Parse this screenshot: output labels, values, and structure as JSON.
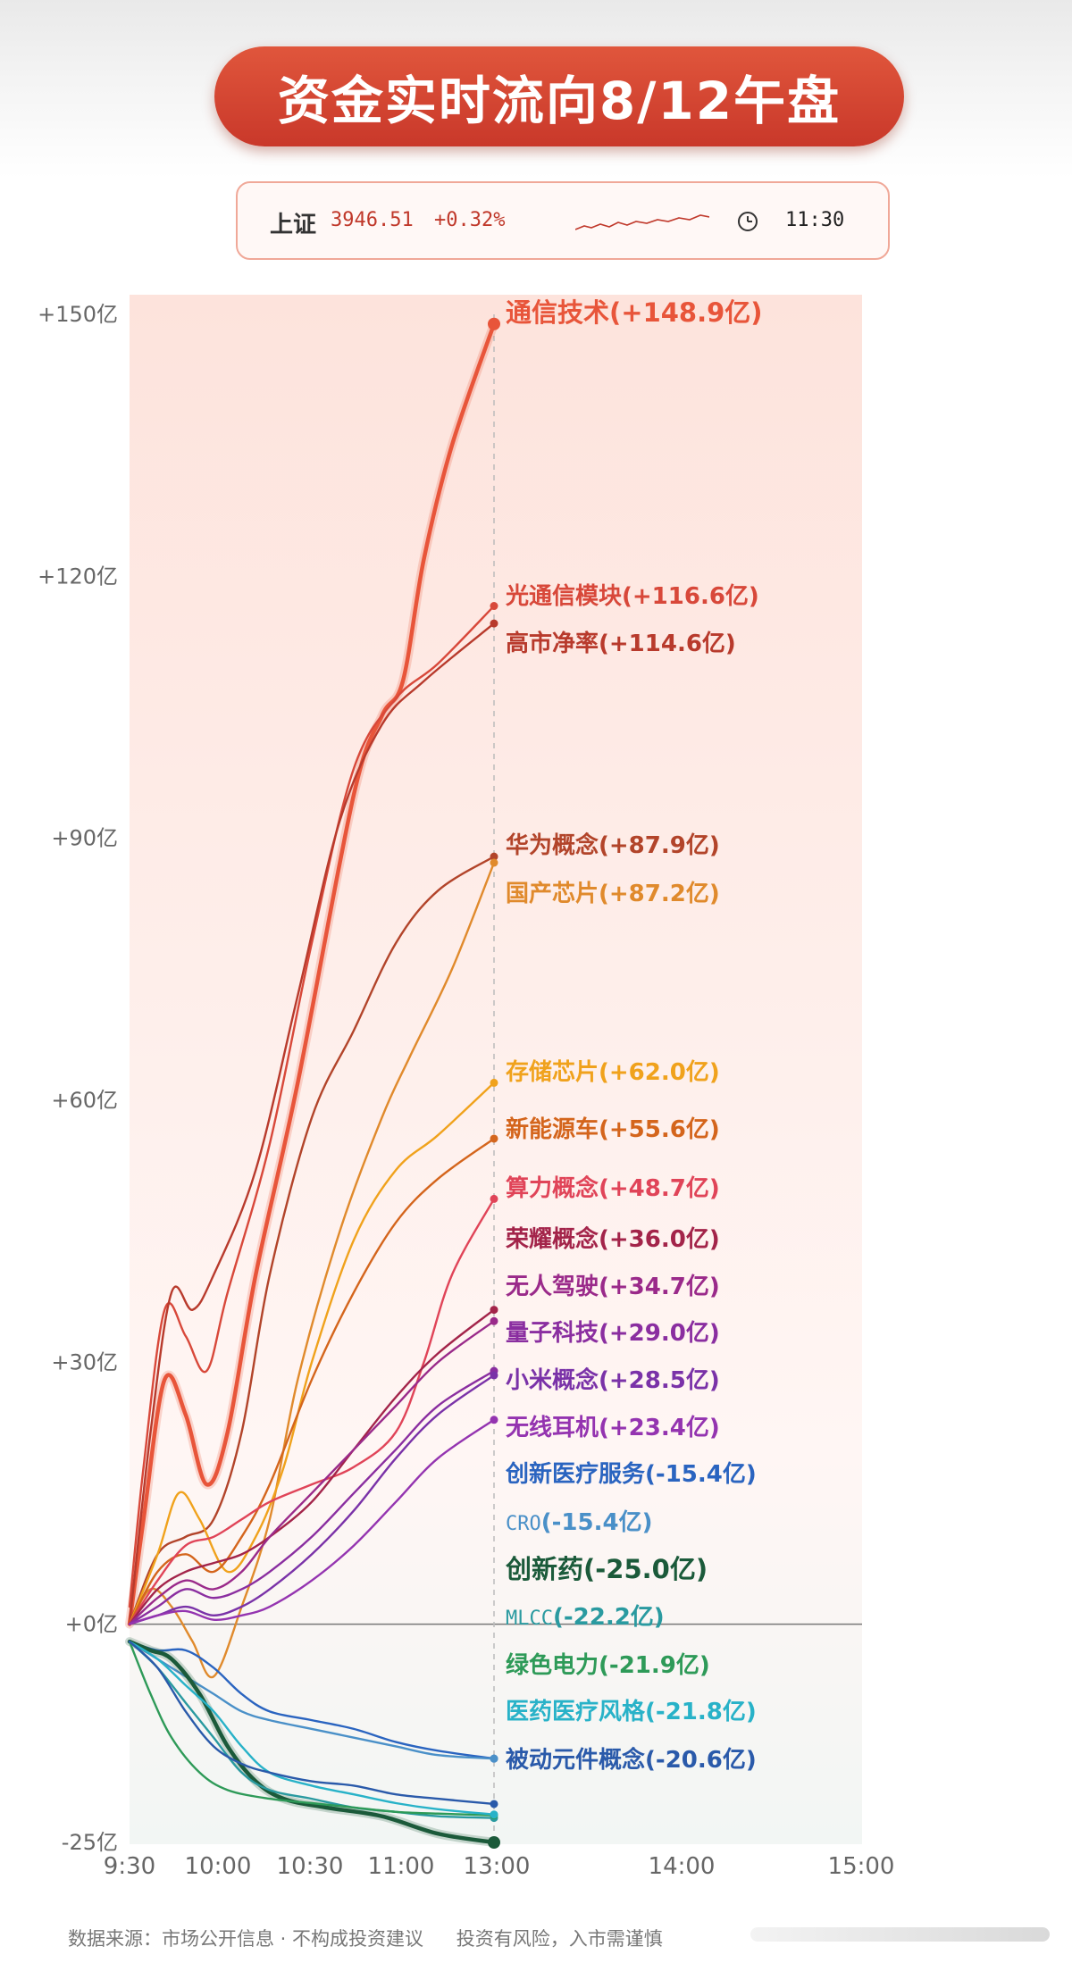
{
  "header": {
    "title": "资金实时流向8/12午盘"
  },
  "ticker": {
    "index_name": "上证",
    "index_value": "3946.51",
    "index_change": "+0.32%",
    "time": "11:30"
  },
  "footer": {
    "source": "数据来源：市场公开信息 · 不构成投资建议",
    "risk": "投资有风险，入市需谨慎"
  },
  "chart_data": {
    "type": "line",
    "x_ticks": [
      "9:30",
      "10:00",
      "10:30",
      "11:00",
      "13:00",
      "14:00",
      "15:00"
    ],
    "y_ticks": [
      "+150亿",
      "+120亿",
      "+90亿",
      "+60亿",
      "+30亿",
      "+0亿",
      "-25亿"
    ],
    "ylim": [
      -25,
      150
    ],
    "grid": false,
    "legend": "labels at line ends",
    "series": [
      {
        "name": "通信技术",
        "label": "(+148.9亿)",
        "value": 148.9,
        "color": "#e8553a",
        "bold": true,
        "points": [
          [
            0,
            0
          ],
          [
            0.1,
            12
          ],
          [
            0.25,
            28
          ],
          [
            0.4,
            24
          ],
          [
            0.55,
            16
          ],
          [
            0.7,
            22
          ],
          [
            0.9,
            40
          ],
          [
            1.2,
            62
          ],
          [
            1.6,
            95
          ],
          [
            1.8,
            104
          ],
          [
            1.95,
            108
          ],
          [
            2.1,
            122
          ],
          [
            2.3,
            135
          ],
          [
            2.6,
            148.9
          ]
        ]
      },
      {
        "name": "光通信模块",
        "label": "(+116.6亿)",
        "value": 116.6,
        "color": "#d8483a",
        "points": [
          [
            0,
            2
          ],
          [
            0.1,
            18
          ],
          [
            0.25,
            36
          ],
          [
            0.4,
            33
          ],
          [
            0.55,
            29
          ],
          [
            0.7,
            38
          ],
          [
            1,
            55
          ],
          [
            1.3,
            78
          ],
          [
            1.6,
            98
          ],
          [
            1.9,
            106
          ],
          [
            2.2,
            110
          ],
          [
            2.6,
            116.6
          ]
        ]
      },
      {
        "name": "高市净率",
        "label": "(+114.6亿)",
        "value": 114.6,
        "color": "#b83a2c",
        "points": [
          [
            0,
            0
          ],
          [
            0.15,
            22
          ],
          [
            0.3,
            38
          ],
          [
            0.45,
            36
          ],
          [
            0.6,
            40
          ],
          [
            0.9,
            52
          ],
          [
            1.2,
            72
          ],
          [
            1.5,
            92
          ],
          [
            1.8,
            103
          ],
          [
            2.1,
            108
          ],
          [
            2.6,
            114.6
          ]
        ]
      },
      {
        "name": "华为概念",
        "label": "(+87.9亿)",
        "value": 87.9,
        "color": "#b2442a",
        "points": [
          [
            0,
            0
          ],
          [
            0.2,
            8
          ],
          [
            0.4,
            10
          ],
          [
            0.6,
            12
          ],
          [
            0.8,
            22
          ],
          [
            1.0,
            40
          ],
          [
            1.3,
            58
          ],
          [
            1.6,
            68
          ],
          [
            1.9,
            78
          ],
          [
            2.2,
            84
          ],
          [
            2.6,
            87.9
          ]
        ]
      },
      {
        "name": "国产芯片",
        "label": "(+87.2亿)",
        "value": 87.2,
        "color": "#e08a2c",
        "points": [
          [
            0,
            0
          ],
          [
            0.15,
            4
          ],
          [
            0.3,
            2
          ],
          [
            0.45,
            -2
          ],
          [
            0.6,
            -6
          ],
          [
            0.8,
            2
          ],
          [
            1.0,
            12
          ],
          [
            1.2,
            28
          ],
          [
            1.5,
            45
          ],
          [
            1.8,
            58
          ],
          [
            2.0,
            65
          ],
          [
            2.3,
            75
          ],
          [
            2.6,
            87.2
          ]
        ]
      },
      {
        "name": "存储芯片",
        "label": "(+62.0亿)",
        "value": 62.0,
        "color": "#f0a21c",
        "points": [
          [
            0,
            0
          ],
          [
            0.2,
            8
          ],
          [
            0.35,
            15
          ],
          [
            0.5,
            12
          ],
          [
            0.7,
            6
          ],
          [
            0.9,
            10
          ],
          [
            1.1,
            18
          ],
          [
            1.3,
            30
          ],
          [
            1.6,
            44
          ],
          [
            1.9,
            52
          ],
          [
            2.2,
            56
          ],
          [
            2.6,
            62.0
          ]
        ]
      },
      {
        "name": "新能源车",
        "label": "(+55.6亿)",
        "value": 55.6,
        "color": "#d4651c",
        "points": [
          [
            0,
            0
          ],
          [
            0.2,
            6
          ],
          [
            0.4,
            8
          ],
          [
            0.6,
            6
          ],
          [
            0.8,
            10
          ],
          [
            1.0,
            16
          ],
          [
            1.3,
            28
          ],
          [
            1.6,
            38
          ],
          [
            1.9,
            46
          ],
          [
            2.2,
            51
          ],
          [
            2.6,
            55.6
          ]
        ]
      },
      {
        "name": "算力概念",
        "label": "(+48.7亿)",
        "value": 48.7,
        "color": "#e04458",
        "points": [
          [
            0,
            0
          ],
          [
            0.2,
            5
          ],
          [
            0.4,
            9
          ],
          [
            0.6,
            10
          ],
          [
            0.8,
            12
          ],
          [
            1.0,
            14
          ],
          [
            1.3,
            16
          ],
          [
            1.6,
            18
          ],
          [
            1.9,
            22
          ],
          [
            2.1,
            30
          ],
          [
            2.3,
            40
          ],
          [
            2.6,
            48.7
          ]
        ]
      },
      {
        "name": "荣耀概念",
        "label": "(+36.0亿)",
        "value": 36.0,
        "color": "#a3244a",
        "points": [
          [
            0,
            0
          ],
          [
            0.2,
            4
          ],
          [
            0.4,
            6
          ],
          [
            0.6,
            7
          ],
          [
            0.8,
            8
          ],
          [
            1.0,
            10
          ],
          [
            1.3,
            14
          ],
          [
            1.6,
            20
          ],
          [
            1.9,
            26
          ],
          [
            2.2,
            31
          ],
          [
            2.6,
            36.0
          ]
        ]
      },
      {
        "name": "无人驾驶",
        "label": "(+34.7亿)",
        "value": 34.7,
        "color": "#9a2a8a",
        "points": [
          [
            0,
            0
          ],
          [
            0.2,
            3
          ],
          [
            0.4,
            5
          ],
          [
            0.6,
            4
          ],
          [
            0.8,
            6
          ],
          [
            1.0,
            10
          ],
          [
            1.3,
            15
          ],
          [
            1.6,
            20
          ],
          [
            1.9,
            25
          ],
          [
            2.2,
            30
          ],
          [
            2.6,
            34.7
          ]
        ]
      },
      {
        "name": "量子科技",
        "label": "(+29.0亿)",
        "value": 29.0,
        "color": "#8a2ea0",
        "points": [
          [
            0,
            0
          ],
          [
            0.2,
            2
          ],
          [
            0.4,
            4
          ],
          [
            0.6,
            3
          ],
          [
            0.8,
            4
          ],
          [
            1.0,
            6
          ],
          [
            1.3,
            10
          ],
          [
            1.6,
            15
          ],
          [
            1.9,
            20
          ],
          [
            2.2,
            25
          ],
          [
            2.6,
            29.0
          ]
        ]
      },
      {
        "name": "小米概念",
        "label": "(+28.5亿)",
        "value": 28.5,
        "color": "#7a32a8",
        "points": [
          [
            0,
            0
          ],
          [
            0.2,
            1
          ],
          [
            0.4,
            2
          ],
          [
            0.6,
            1
          ],
          [
            0.8,
            2
          ],
          [
            1.0,
            4
          ],
          [
            1.3,
            8
          ],
          [
            1.6,
            13
          ],
          [
            1.9,
            19
          ],
          [
            2.2,
            24
          ],
          [
            2.6,
            28.5
          ]
        ]
      },
      {
        "name": "无线耳机",
        "label": "(+23.4亿)",
        "value": 23.4,
        "color": "#9434b0",
        "points": [
          [
            0,
            0
          ],
          [
            0.2,
            1
          ],
          [
            0.4,
            1.5
          ],
          [
            0.6,
            0.5
          ],
          [
            0.8,
            1
          ],
          [
            1.0,
            2
          ],
          [
            1.3,
            5
          ],
          [
            1.6,
            9
          ],
          [
            1.9,
            14
          ],
          [
            2.2,
            19
          ],
          [
            2.6,
            23.4
          ]
        ]
      },
      {
        "name": "创新医疗服务",
        "label": "(-15.4亿)",
        "value": -15.4,
        "color": "#2a64c0",
        "points": [
          [
            0,
            -2
          ],
          [
            0.2,
            -3
          ],
          [
            0.4,
            -3
          ],
          [
            0.6,
            -5
          ],
          [
            0.8,
            -8
          ],
          [
            1.0,
            -10
          ],
          [
            1.3,
            -11
          ],
          [
            1.6,
            -12
          ],
          [
            1.9,
            -13.5
          ],
          [
            2.2,
            -14.5
          ],
          [
            2.6,
            -15.4
          ]
        ]
      },
      {
        "name": "CRO",
        "label": "(-15.4亿)",
        "value": -15.4,
        "color": "#4a90c8",
        "mono": true,
        "points": [
          [
            0,
            -2
          ],
          [
            0.2,
            -4
          ],
          [
            0.4,
            -6
          ],
          [
            0.6,
            -8
          ],
          [
            0.8,
            -10
          ],
          [
            1.0,
            -11
          ],
          [
            1.3,
            -12
          ],
          [
            1.6,
            -13
          ],
          [
            1.9,
            -14
          ],
          [
            2.2,
            -15
          ],
          [
            2.6,
            -15.4
          ]
        ]
      },
      {
        "name": "创新药",
        "label": "(-25.0亿)",
        "value": -25.0,
        "color": "#1b5a3a",
        "bold": true,
        "points": [
          [
            0,
            -2
          ],
          [
            0.15,
            -3
          ],
          [
            0.3,
            -4
          ],
          [
            0.5,
            -8
          ],
          [
            0.7,
            -14
          ],
          [
            0.9,
            -18
          ],
          [
            1.1,
            -20
          ],
          [
            1.4,
            -21
          ],
          [
            1.8,
            -22
          ],
          [
            2.2,
            -24
          ],
          [
            2.6,
            -25.0
          ]
        ]
      },
      {
        "name": "MLCC",
        "label": "(-22.2亿)",
        "value": -22.2,
        "color": "#2a9aa0",
        "mono": true,
        "points": [
          [
            0,
            -2
          ],
          [
            0.2,
            -5
          ],
          [
            0.4,
            -9
          ],
          [
            0.6,
            -13
          ],
          [
            0.8,
            -17
          ],
          [
            1.0,
            -19
          ],
          [
            1.3,
            -20
          ],
          [
            1.6,
            -21
          ],
          [
            1.9,
            -21.5
          ],
          [
            2.2,
            -22
          ],
          [
            2.6,
            -22.2
          ]
        ]
      },
      {
        "name": "绿色电力",
        "label": "(-21.9亿)",
        "value": -21.9,
        "color": "#2e9a58",
        "points": [
          [
            0,
            -2
          ],
          [
            0.15,
            -8
          ],
          [
            0.3,
            -13
          ],
          [
            0.5,
            -17
          ],
          [
            0.7,
            -19
          ],
          [
            1.0,
            -20
          ],
          [
            1.3,
            -20.5
          ],
          [
            1.6,
            -21
          ],
          [
            1.9,
            -21.5
          ],
          [
            2.2,
            -21.7
          ],
          [
            2.6,
            -21.9
          ]
        ]
      },
      {
        "name": "医药医疗风格",
        "label": "(-21.8亿)",
        "value": -21.8,
        "color": "#28b2c8",
        "points": [
          [
            0,
            -2
          ],
          [
            0.2,
            -4
          ],
          [
            0.4,
            -7
          ],
          [
            0.6,
            -10
          ],
          [
            0.8,
            -14
          ],
          [
            1.0,
            -17
          ],
          [
            1.3,
            -18.5
          ],
          [
            1.6,
            -19.5
          ],
          [
            1.9,
            -20.5
          ],
          [
            2.2,
            -21.2
          ],
          [
            2.6,
            -21.8
          ]
        ]
      },
      {
        "name": "被动元件概念",
        "label": "(-20.6亿)",
        "value": -20.6,
        "color": "#2a5aaa",
        "points": [
          [
            0,
            -2
          ],
          [
            0.2,
            -5
          ],
          [
            0.4,
            -10
          ],
          [
            0.6,
            -14
          ],
          [
            0.8,
            -16
          ],
          [
            1.0,
            -17
          ],
          [
            1.3,
            -18
          ],
          [
            1.6,
            -18.5
          ],
          [
            1.9,
            -19.5
          ],
          [
            2.2,
            -20
          ],
          [
            2.6,
            -20.6
          ]
        ]
      }
    ]
  }
}
